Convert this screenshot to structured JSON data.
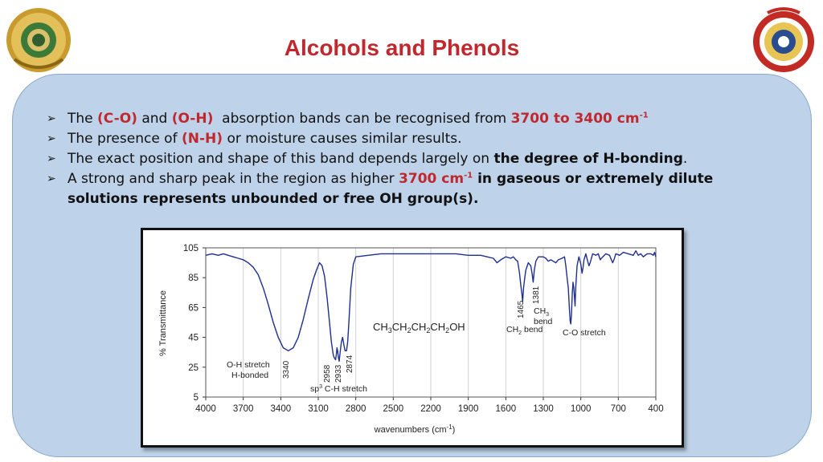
{
  "slide": {
    "title": "Alcohols and Phenols",
    "logos": [
      "university-seal",
      "college-of-pharmacy-emblem"
    ]
  },
  "bullets": [
    {
      "parts": [
        {
          "text": "The ",
          "style": "normal"
        },
        {
          "text": "(C-O)",
          "style": "red"
        },
        {
          "text": " and ",
          "style": "normal"
        },
        {
          "text": "(O-H)",
          "style": "red"
        },
        {
          "text": "  absorption bands can be recognised from ",
          "style": "normal"
        },
        {
          "text": "3700 to 3400 cm",
          "style": "red"
        },
        {
          "text": "-1",
          "style": "red-sup"
        }
      ]
    },
    {
      "parts": [
        {
          "text": "The presence of ",
          "style": "normal"
        },
        {
          "text": "(N-H)",
          "style": "red"
        },
        {
          "text": " or moisture causes similar results.",
          "style": "normal"
        }
      ]
    },
    {
      "parts": [
        {
          "text": "The exact position and shape of this band depends largely on ",
          "style": "normal"
        },
        {
          "text": "the degree of H-bonding",
          "style": "bold"
        },
        {
          "text": ".",
          "style": "normal"
        }
      ]
    },
    {
      "parts": [
        {
          "text": "A strong and sharp peak in the region as higher ",
          "style": "normal"
        },
        {
          "text": "3700 cm",
          "style": "red"
        },
        {
          "text": "-1",
          "style": "red-sup"
        },
        {
          "text": " in gaseous or extremely dilute solutions represents unbounded or free OH group(s).",
          "style": "bold"
        }
      ]
    }
  ],
  "chart_data": {
    "type": "line",
    "xlabel": "wavenumbers (cm",
    "xlabel_sup": "-1",
    "xlabel_close": ")",
    "ylabel": "% Transmittance",
    "xlim": [
      4000,
      400
    ],
    "ylim": [
      5,
      105
    ],
    "x_ticks": [
      4000,
      3700,
      3400,
      3100,
      2800,
      2500,
      2200,
      1900,
      1600,
      1300,
      1000,
      700,
      400
    ],
    "y_ticks": [
      105,
      85,
      65,
      45,
      25,
      5
    ],
    "grid": "vertical",
    "series_color": "#1f2f8f",
    "series": [
      {
        "points": [
          [
            4000,
            100
          ],
          [
            3950,
            101
          ],
          [
            3900,
            100
          ],
          [
            3860,
            101
          ],
          [
            3820,
            100
          ],
          [
            3780,
            99
          ],
          [
            3740,
            98
          ],
          [
            3700,
            97
          ],
          [
            3660,
            95
          ],
          [
            3620,
            92
          ],
          [
            3580,
            87
          ],
          [
            3540,
            78
          ],
          [
            3500,
            67
          ],
          [
            3460,
            55
          ],
          [
            3420,
            45
          ],
          [
            3380,
            38
          ],
          [
            3340,
            36
          ],
          [
            3300,
            38
          ],
          [
            3260,
            45
          ],
          [
            3220,
            57
          ],
          [
            3180,
            71
          ],
          [
            3140,
            84
          ],
          [
            3110,
            91
          ],
          [
            3090,
            95
          ],
          [
            3070,
            93
          ],
          [
            3050,
            86
          ],
          [
            3030,
            72
          ],
          [
            3010,
            55
          ],
          [
            2995,
            42
          ],
          [
            2980,
            33
          ],
          [
            2970,
            31
          ],
          [
            2962,
            30
          ],
          [
            2955,
            34
          ],
          [
            2950,
            38
          ],
          [
            2945,
            36
          ],
          [
            2940,
            32
          ],
          [
            2933,
            29
          ],
          [
            2925,
            35
          ],
          [
            2915,
            42
          ],
          [
            2905,
            45
          ],
          [
            2895,
            40
          ],
          [
            2885,
            36
          ],
          [
            2874,
            36
          ],
          [
            2865,
            42
          ],
          [
            2855,
            55
          ],
          [
            2840,
            78
          ],
          [
            2820,
            94
          ],
          [
            2800,
            99
          ],
          [
            2700,
            100
          ],
          [
            2600,
            101
          ],
          [
            2500,
            101
          ],
          [
            2400,
            101
          ],
          [
            2300,
            101
          ],
          [
            2200,
            101
          ],
          [
            2100,
            101
          ],
          [
            2000,
            101
          ],
          [
            1900,
            100
          ],
          [
            1800,
            100
          ],
          [
            1750,
            99
          ],
          [
            1700,
            98
          ],
          [
            1670,
            95
          ],
          [
            1640,
            97
          ],
          [
            1620,
            98
          ],
          [
            1600,
            99
          ],
          [
            1560,
            98
          ],
          [
            1540,
            99
          ],
          [
            1520,
            97
          ],
          [
            1505,
            96
          ],
          [
            1490,
            88
          ],
          [
            1480,
            80
          ],
          [
            1470,
            73
          ],
          [
            1465,
            69
          ],
          [
            1458,
            78
          ],
          [
            1450,
            84
          ],
          [
            1440,
            90
          ],
          [
            1420,
            95
          ],
          [
            1400,
            93
          ],
          [
            1390,
            88
          ],
          [
            1381,
            82
          ],
          [
            1372,
            90
          ],
          [
            1360,
            96
          ],
          [
            1340,
            99
          ],
          [
            1320,
            99
          ],
          [
            1300,
            99
          ],
          [
            1280,
            98
          ],
          [
            1260,
            96
          ],
          [
            1240,
            97
          ],
          [
            1220,
            96
          ],
          [
            1200,
            95
          ],
          [
            1180,
            97
          ],
          [
            1150,
            98
          ],
          [
            1130,
            99
          ],
          [
            1120,
            93
          ],
          [
            1110,
            85
          ],
          [
            1100,
            78
          ],
          [
            1095,
            70
          ],
          [
            1090,
            62
          ],
          [
            1085,
            56
          ],
          [
            1080,
            54
          ],
          [
            1075,
            60
          ],
          [
            1068,
            75
          ],
          [
            1062,
            82
          ],
          [
            1056,
            78
          ],
          [
            1050,
            71
          ],
          [
            1046,
            66
          ],
          [
            1040,
            79
          ],
          [
            1030,
            93
          ],
          [
            1015,
            99
          ],
          [
            1000,
            94
          ],
          [
            990,
            88
          ],
          [
            982,
            92
          ],
          [
            975,
            97
          ],
          [
            960,
            101
          ],
          [
            945,
            96
          ],
          [
            935,
            93
          ],
          [
            925,
            95
          ],
          [
            905,
            101
          ],
          [
            880,
            100
          ],
          [
            860,
            101
          ],
          [
            845,
            97
          ],
          [
            835,
            98
          ],
          [
            800,
            101
          ],
          [
            770,
            100
          ],
          [
            745,
            95
          ],
          [
            735,
            97
          ],
          [
            720,
            101
          ],
          [
            690,
            100
          ],
          [
            660,
            102
          ],
          [
            620,
            101
          ],
          [
            580,
            100
          ],
          [
            560,
            103
          ],
          [
            540,
            100
          ],
          [
            520,
            101
          ],
          [
            500,
            99
          ],
          [
            470,
            101
          ],
          [
            440,
            101
          ],
          [
            420,
            100
          ],
          [
            410,
            102
          ],
          [
            400,
            99
          ]
        ]
      }
    ],
    "annotations": {
      "compound": "CH3CH2CH2CH2OH",
      "oh_stretch_line1": "O-H stretch",
      "oh_stretch_line2": "H-bonded",
      "peak_3340": "3340",
      "peak_2958": "2958",
      "peak_2933": "2933",
      "peak_2874": "2874",
      "sp3_prefix": "sp",
      "sp3_sup": "3",
      "sp3_suffix": " C-H stretch",
      "peak_1465": "1465",
      "peak_1381": "1381",
      "ch3_label": "CH",
      "ch3_sub": "3",
      "bend_label": "bend",
      "ch2_label": "CH",
      "ch2_sub": "2",
      "ch2_suffix": " bend",
      "co_stretch": "C-O stretch"
    }
  }
}
